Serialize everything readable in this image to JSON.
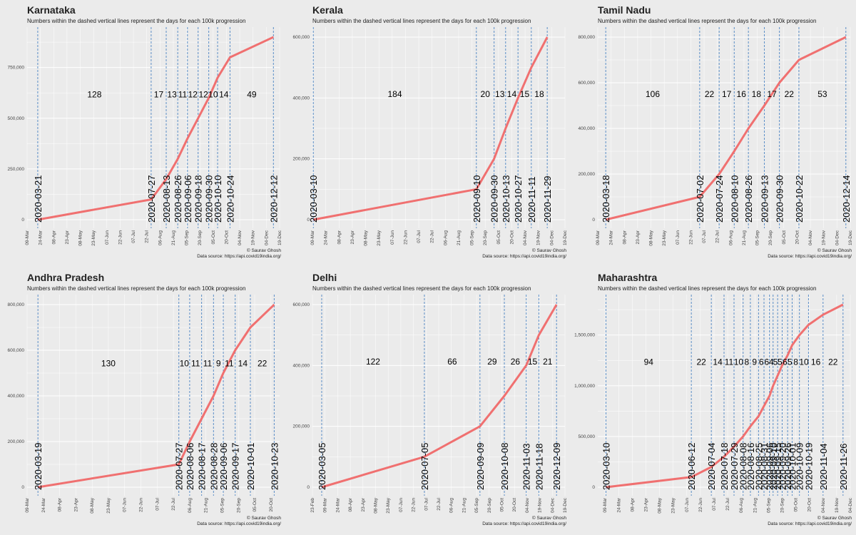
{
  "subtitle": "Numbers within the dashed vertical lines represent the days for each 100k progression",
  "credit": "© Saurav Ghosh",
  "source": "Data source: https://api.covid19india.org/",
  "colors": {
    "line": "#f07070",
    "vline": "#5b8ec7",
    "background": "#ebebeb",
    "grid": "#ffffff"
  },
  "chart_data": [
    {
      "type": "line",
      "title": "Karnataka",
      "x_range": [
        "2020-03-09",
        "2020-12-19"
      ],
      "x_ticks": [
        "09-Mar",
        "24-Mar",
        "08-Apr",
        "23-Apr",
        "08-May",
        "23-May",
        "07-Jun",
        "22-Jun",
        "07-Jul",
        "22-Jul",
        "06-Aug",
        "21-Aug",
        "05-Sep",
        "20-Sep",
        "05-Oct",
        "20-Oct",
        "04-Nov",
        "19-Nov",
        "04-Dec",
        "19-Dec"
      ],
      "ylim": [
        0,
        900000
      ],
      "y_ticks": [
        0,
        250000,
        500000,
        750000
      ],
      "y_tick_labels": [
        "0",
        "250,000",
        "500,000",
        "750,000"
      ],
      "milestone_dates": [
        "2020-03-21",
        "2020-07-27",
        "2020-08-13",
        "2020-08-26",
        "2020-09-06",
        "2020-09-18",
        "2020-09-30",
        "2020-10-10",
        "2020-10-24",
        "2020-12-12"
      ],
      "series": [
        {
          "x": [
            "2020-03-21",
            "2020-07-27",
            "2020-08-13",
            "2020-08-26",
            "2020-09-06",
            "2020-09-18",
            "2020-09-30",
            "2020-10-10",
            "2020-10-24",
            "2020-12-12"
          ],
          "y": [
            0,
            100000,
            200000,
            300000,
            400000,
            500000,
            600000,
            700000,
            800000,
            900000
          ]
        }
      ],
      "day_labels": [
        "128",
        "17",
        "13",
        "11",
        "12",
        "12",
        "10",
        "14",
        "49"
      ],
      "label_y": 620000
    },
    {
      "type": "line",
      "title": "Kerala",
      "x_range": [
        "2020-03-09",
        "2020-12-19"
      ],
      "x_ticks": [
        "09-Mar",
        "24-Mar",
        "08-Apr",
        "23-Apr",
        "08-May",
        "23-May",
        "07-Jun",
        "22-Jun",
        "07-Jul",
        "22-Jul",
        "06-Aug",
        "21-Aug",
        "05-Sep",
        "20-Sep",
        "05-Oct",
        "20-Oct",
        "04-Nov",
        "19-Nov",
        "04-Dec",
        "19-Dec"
      ],
      "ylim": [
        0,
        600000
      ],
      "y_ticks": [
        0,
        200000,
        400000,
        600000
      ],
      "y_tick_labels": [
        "0",
        "200,000",
        "400,000",
        "600,000"
      ],
      "milestone_dates": [
        "2020-03-10",
        "2020-09-10",
        "2020-09-30",
        "2020-10-13",
        "2020-10-27",
        "2020-11-11",
        "2020-11-29"
      ],
      "series": [
        {
          "x": [
            "2020-03-10",
            "2020-09-10",
            "2020-09-30",
            "2020-10-13",
            "2020-10-27",
            "2020-11-11",
            "2020-11-29"
          ],
          "y": [
            0,
            100000,
            200000,
            300000,
            400000,
            500000,
            600000
          ]
        }
      ],
      "day_labels": [
        "184",
        "20",
        "13",
        "14",
        "15",
        "18"
      ],
      "label_y": 415000
    },
    {
      "type": "line",
      "title": "Tamil Nadu",
      "x_range": [
        "2020-03-09",
        "2020-12-19"
      ],
      "x_ticks": [
        "09-Mar",
        "24-Mar",
        "08-Apr",
        "23-Apr",
        "08-May",
        "23-May",
        "07-Jun",
        "22-Jun",
        "07-Jul",
        "22-Jul",
        "06-Aug",
        "21-Aug",
        "05-Sep",
        "20-Sep",
        "05-Oct",
        "20-Oct",
        "04-Nov",
        "19-Nov",
        "04-Dec",
        "19-Dec"
      ],
      "ylim": [
        0,
        800000
      ],
      "y_ticks": [
        0,
        200000,
        400000,
        600000,
        800000
      ],
      "y_tick_labels": [
        "0",
        "200,000",
        "400,000",
        "600,000",
        "800,000"
      ],
      "milestone_dates": [
        "2020-03-18",
        "2020-07-02",
        "2020-07-24",
        "2020-08-10",
        "2020-08-26",
        "2020-09-13",
        "2020-09-30",
        "2020-10-22",
        "2020-12-14"
      ],
      "series": [
        {
          "x": [
            "2020-03-18",
            "2020-07-02",
            "2020-07-24",
            "2020-08-10",
            "2020-08-26",
            "2020-09-13",
            "2020-09-30",
            "2020-10-22",
            "2020-12-14"
          ],
          "y": [
            0,
            100000,
            200000,
            300000,
            400000,
            500000,
            600000,
            700000,
            800000
          ]
        }
      ],
      "day_labels": [
        "106",
        "22",
        "17",
        "16",
        "18",
        "17",
        "22",
        "53"
      ],
      "label_y": 553000
    },
    {
      "type": "line",
      "title": "Andhra Pradesh",
      "x_range": [
        "2020-03-09",
        "2020-10-28"
      ],
      "x_ticks": [
        "09-Mar",
        "24-Mar",
        "08-Apr",
        "23-Apr",
        "08-May",
        "23-May",
        "07-Jun",
        "22-Jun",
        "07-Jul",
        "22-Jul",
        "06-Aug",
        "21-Aug",
        "05-Sep",
        "20-Sep",
        "05-Oct",
        "20-Oct"
      ],
      "ylim": [
        0,
        800000
      ],
      "y_ticks": [
        0,
        200000,
        400000,
        600000,
        800000
      ],
      "y_tick_labels": [
        "0",
        "200,000",
        "400,000",
        "600,000",
        "800,000"
      ],
      "milestone_dates": [
        "2020-03-19",
        "2020-07-27",
        "2020-08-06",
        "2020-08-17",
        "2020-08-28",
        "2020-09-06",
        "2020-09-17",
        "2020-10-01",
        "2020-10-23"
      ],
      "series": [
        {
          "x": [
            "2020-03-19",
            "2020-07-27",
            "2020-08-06",
            "2020-08-17",
            "2020-08-28",
            "2020-09-06",
            "2020-09-17",
            "2020-10-01",
            "2020-10-23"
          ],
          "y": [
            0,
            100000,
            200000,
            300000,
            400000,
            500000,
            600000,
            700000,
            800000
          ]
        }
      ],
      "day_labels": [
        "130",
        "10",
        "11",
        "11",
        "9",
        "11",
        "14",
        "22"
      ],
      "label_y": 545000
    },
    {
      "type": "line",
      "title": "Delhi",
      "x_range": [
        "2020-02-23",
        "2020-12-19"
      ],
      "x_ticks": [
        "23-Feb",
        "09-Mar",
        "24-Mar",
        "08-Apr",
        "23-Apr",
        "08-May",
        "23-May",
        "07-Jun",
        "22-Jun",
        "07-Jul",
        "22-Jul",
        "06-Aug",
        "21-Aug",
        "05-Sep",
        "20-Sep",
        "05-Oct",
        "20-Oct",
        "04-Nov",
        "19-Nov",
        "04-Dec",
        "19-Dec"
      ],
      "ylim": [
        0,
        600000
      ],
      "y_ticks": [
        0,
        200000,
        400000,
        600000
      ],
      "y_tick_labels": [
        "0",
        "200,000",
        "400,000",
        "600,000"
      ],
      "milestone_dates": [
        "2020-03-05",
        "2020-07-05",
        "2020-09-09",
        "2020-10-08",
        "2020-11-03",
        "2020-11-18",
        "2020-12-09"
      ],
      "series": [
        {
          "x": [
            "2020-03-05",
            "2020-07-05",
            "2020-09-09",
            "2020-10-08",
            "2020-11-03",
            "2020-11-18",
            "2020-12-09"
          ],
          "y": [
            0,
            100000,
            200000,
            300000,
            400000,
            500000,
            600000
          ]
        }
      ],
      "day_labels": [
        "122",
        "66",
        "29",
        "26",
        "15",
        "21"
      ],
      "label_y": 415000
    },
    {
      "type": "line",
      "title": "Maharashtra",
      "x_range": [
        "2020-03-01",
        "2020-12-04"
      ],
      "x_ticks": [
        "09-Mar",
        "24-Mar",
        "08-Apr",
        "23-Apr",
        "08-May",
        "23-May",
        "07-Jun",
        "22-Jun",
        "07-Jul",
        "22-Jul",
        "06-Aug",
        "21-Aug",
        "05-Sep",
        "20-Sep",
        "05-Oct",
        "20-Oct",
        "04-Nov",
        "19-Nov",
        "04-Dec"
      ],
      "ylim": [
        0,
        1800000
      ],
      "y_ticks": [
        0,
        500000,
        1000000,
        1500000
      ],
      "y_tick_labels": [
        "0",
        "500,000",
        "1,000,000",
        "1,500,000"
      ],
      "milestone_dates": [
        "2020-03-10",
        "2020-06-12",
        "2020-07-04",
        "2020-07-18",
        "2020-07-29",
        "2020-08-08",
        "2020-08-16",
        "2020-08-25",
        "2020-08-31",
        "2020-09-06",
        "2020-09-10",
        "2020-09-15",
        "2020-09-20",
        "2020-09-26",
        "2020-10-01",
        "2020-10-09",
        "2020-10-19",
        "2020-11-04",
        "2020-11-26"
      ],
      "series": [
        {
          "x": [
            "2020-03-10",
            "2020-06-12",
            "2020-07-04",
            "2020-07-18",
            "2020-07-29",
            "2020-08-08",
            "2020-08-16",
            "2020-08-25",
            "2020-08-31",
            "2020-09-06",
            "2020-09-10",
            "2020-09-15",
            "2020-09-20",
            "2020-09-26",
            "2020-10-01",
            "2020-10-09",
            "2020-10-19",
            "2020-11-04",
            "2020-11-26"
          ],
          "y": [
            0,
            100000,
            200000,
            300000,
            400000,
            500000,
            600000,
            700000,
            800000,
            900000,
            1000000,
            1100000,
            1200000,
            1300000,
            1400000,
            1500000,
            1600000,
            1700000,
            1800000
          ]
        }
      ],
      "day_labels": [
        "94",
        "22",
        "14",
        "11",
        "10",
        "8",
        "9",
        "6",
        "6",
        "4",
        "5",
        "5",
        "6",
        "5",
        "8",
        "10",
        "16",
        "22"
      ],
      "label_y": 1240000
    }
  ]
}
